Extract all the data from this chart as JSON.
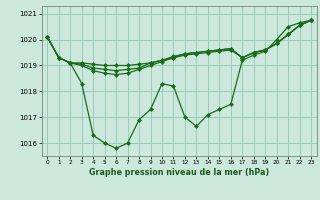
{
  "xlabel": "Graphe pression niveau de la mer (hPa)",
  "bg_color": "#cce8dd",
  "grid_color": "#99ccbb",
  "line_color": "#1a6b1a",
  "marker": "D",
  "markersize": 2.0,
  "linewidth": 0.9,
  "ylim": [
    1015.5,
    1021.3
  ],
  "yticks": [
    1016,
    1017,
    1018,
    1019,
    1020,
    1021
  ],
  "xticks": [
    0,
    1,
    2,
    3,
    4,
    5,
    6,
    7,
    8,
    9,
    10,
    11,
    12,
    13,
    14,
    15,
    16,
    17,
    18,
    19,
    20,
    21,
    22,
    23
  ],
  "series": [
    [
      1020.1,
      1019.3,
      1019.1,
      1018.3,
      1016.3,
      1016.0,
      1015.8,
      1016.0,
      1016.9,
      1017.3,
      1018.3,
      1018.2,
      1017.0,
      1016.65,
      1017.1,
      1017.3,
      1017.5,
      1019.2,
      1019.4,
      1019.55,
      1020.0,
      1020.5,
      1020.65,
      1020.75
    ],
    [
      1020.1,
      1019.3,
      1019.1,
      1019.1,
      1019.05,
      1019.0,
      1019.0,
      1019.0,
      1019.05,
      1019.1,
      1019.2,
      1019.3,
      1019.45,
      1019.5,
      1019.55,
      1019.6,
      1019.65,
      1019.3,
      1019.5,
      1019.6,
      1019.85,
      1020.2,
      1020.55,
      1020.75
    ],
    [
      1020.1,
      1019.3,
      1019.1,
      1019.05,
      1018.9,
      1018.85,
      1018.8,
      1018.85,
      1018.9,
      1019.1,
      1019.2,
      1019.35,
      1019.45,
      1019.5,
      1019.55,
      1019.6,
      1019.65,
      1019.3,
      1019.5,
      1019.6,
      1019.85,
      1020.2,
      1020.55,
      1020.75
    ],
    [
      1020.1,
      1019.3,
      1019.1,
      1019.0,
      1018.8,
      1018.7,
      1018.65,
      1018.7,
      1018.85,
      1019.0,
      1019.15,
      1019.3,
      1019.4,
      1019.45,
      1019.5,
      1019.55,
      1019.6,
      1019.3,
      1019.5,
      1019.6,
      1019.85,
      1020.2,
      1020.55,
      1020.75
    ]
  ]
}
